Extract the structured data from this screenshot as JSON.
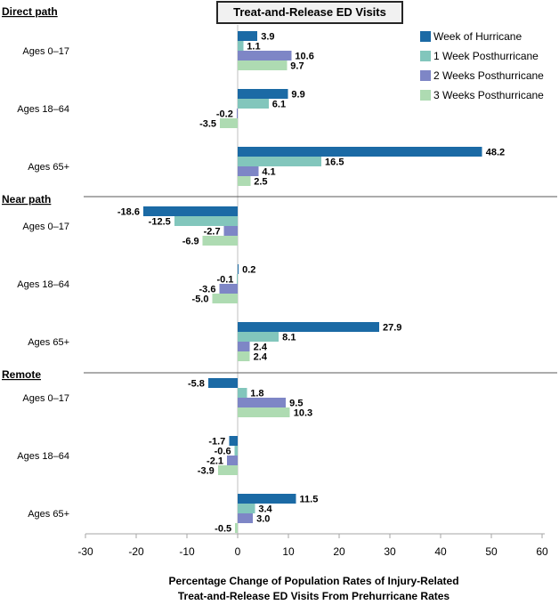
{
  "chart_data": {
    "type": "bar",
    "orientation": "horizontal",
    "title": "Treat-and-Release ED Visits",
    "xlabel": "Percentage Change of Population Rates of Injury-Related Treat-and-Release ED Visits From Prehurricane Rates",
    "xlabel_lines": [
      "Percentage Change of Population Rates of Injury-Related",
      "Treat-and-Release ED Visits From Prehurricane Rates"
    ],
    "xlim": [
      -30,
      60
    ],
    "xticks": [
      -30,
      -20,
      -10,
      0,
      10,
      20,
      30,
      40,
      50,
      60
    ],
    "legend_position": "top-right",
    "grid": "zero-line-only",
    "series_names": [
      "Week of Hurricane",
      "1 Week Posthurricane",
      "2 Weeks Posthurricane",
      "3 Weeks Posthurricane"
    ],
    "series_colors": [
      "#1B6AA5",
      "#82C6BC",
      "#7E86C6",
      "#AEDBB2"
    ],
    "axis_line_color": "#A6A6A6",
    "zero_line_color": "#BFBFBF",
    "separator_line_color": "#595959",
    "sections": [
      {
        "label": "Direct path",
        "groups": [
          {
            "category": "Ages 0–17",
            "values": [
              3.9,
              1.1,
              10.6,
              9.7
            ]
          },
          {
            "category": "Ages 18–64",
            "values": [
              9.9,
              6.1,
              -0.2,
              -3.5
            ]
          },
          {
            "category": "Ages 65+",
            "values": [
              48.2,
              16.5,
              4.1,
              2.5
            ]
          }
        ]
      },
      {
        "label": "Near path",
        "groups": [
          {
            "category": "Ages 0–17",
            "values": [
              -18.6,
              -12.5,
              -2.7,
              -6.9
            ]
          },
          {
            "category": "Ages 18–64",
            "values": [
              0.2,
              -0.1,
              -3.6,
              -5.0
            ]
          },
          {
            "category": "Ages 65+",
            "values": [
              27.9,
              8.1,
              2.4,
              2.4
            ]
          }
        ]
      },
      {
        "label": "Remote",
        "groups": [
          {
            "category": "Ages 0–17",
            "values": [
              -5.8,
              1.8,
              9.5,
              10.3
            ]
          },
          {
            "category": "Ages 18–64",
            "values": [
              -1.7,
              -0.6,
              -2.1,
              -3.9
            ]
          },
          {
            "category": "Ages 65+",
            "values": [
              11.5,
              3.4,
              3.0,
              -0.5
            ]
          }
        ]
      }
    ]
  }
}
